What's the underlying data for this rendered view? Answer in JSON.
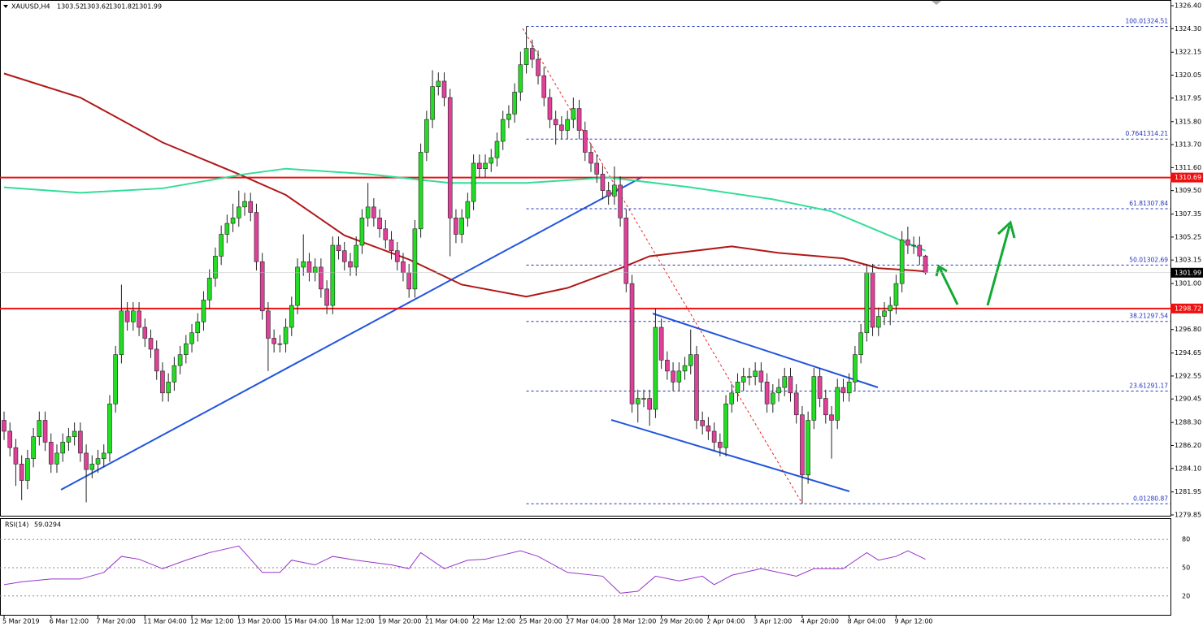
{
  "chart_data": {
    "type": "candlestick",
    "symbol": "XAUUSD,H4",
    "bull_color": "#22dd22",
    "bear_color": "#e0409a",
    "ylim": [
      1279.85,
      1326.4
    ],
    "yticks": [
      {
        "value": 1326.4,
        "label": "1326.40"
      },
      {
        "value": 1324.3,
        "label": "1324.30"
      },
      1322.15,
      {
        "value": 1320.05,
        "label": "1320.05"
      },
      1317.95,
      {
        "value": 1315.8,
        "label": "1315.80"
      },
      {
        "value": 1313.7,
        "label": "1313.70"
      },
      {
        "value": 1311.6,
        "label": "1311.60"
      },
      {
        "value": 1309.5,
        "label": "1309.50"
      },
      1307.35,
      1305.25,
      1303.15,
      {
        "value": 1301.0,
        "label": "1301.00"
      },
      {
        "value": 1298.9,
        "label": "1298.90"
      },
      {
        "value": 1296.8,
        "label": "1296.80"
      },
      1294.65,
      1292.55,
      1290.45,
      {
        "value": 1288.3,
        "label": "1288.30"
      },
      {
        "value": 1286.2,
        "label": "1286.20"
      },
      {
        "value": 1284.1,
        "label": "1284.10"
      },
      1281.95,
      {
        "value": 1279.85,
        "label": "1279.85"
      }
    ],
    "xlim": [
      0,
      158
    ],
    "xticks": [
      {
        "value": 0,
        "label": "5 Mar 2019"
      },
      {
        "value": 8,
        "label": "6 Mar 12:00"
      },
      {
        "value": 16,
        "label": "7 Mar 20:00"
      },
      {
        "value": 24,
        "label": "11 Mar 04:00"
      },
      {
        "value": 32,
        "label": "12 Mar 12:00"
      },
      {
        "value": 40,
        "label": "13 Mar 20:00"
      },
      {
        "value": 48,
        "label": "15 Mar 04:00"
      },
      {
        "value": 56,
        "label": "18 Mar 12:00"
      },
      {
        "value": 64,
        "label": "19 Mar 20:00"
      },
      {
        "value": 72,
        "label": "21 Mar 04:00"
      },
      {
        "value": 80,
        "label": "22 Mar 12:00"
      },
      {
        "value": 88,
        "label": "25 Mar 20:00"
      },
      {
        "value": 96,
        "label": "27 Mar 04:00"
      },
      {
        "value": 104,
        "label": "28 Mar 12:00"
      },
      {
        "value": 112,
        "label": "29 Mar 20:00"
      },
      {
        "value": 120,
        "label": "2 Apr 04:00"
      },
      {
        "value": 128,
        "label": "3 Apr 12:00"
      },
      {
        "value": 136,
        "label": "4 Apr 20:00"
      },
      {
        "value": 144,
        "label": "8 Apr 04:00"
      },
      {
        "value": 152,
        "label": "9 Apr 12:00"
      }
    ],
    "open": [
      1288.5,
      1287.5,
      1286,
      1284.5,
      1283,
      1285,
      1287,
      1288.5,
      1286.5,
      1284.5,
      1285.5,
      1286.5,
      1287,
      1287.5,
      1285.5,
      1284,
      1284.5,
      1285,
      1285.5,
      1290,
      1294.5,
      1298.5,
      1297.5,
      1298.5,
      1297,
      1296,
      1295,
      1293,
      1291,
      1292,
      1293.5,
      1294.5,
      1295.5,
      1296.5,
      1297.5,
      1299.5,
      1301.5,
      1303.5,
      1305.5,
      1306.5,
      1307,
      1308,
      1308.5,
      1307.5,
      1303,
      1298.5,
      1296,
      1295.5,
      1295.5,
      1297,
      1299,
      1302.5,
      1303,
      1302,
      1302.5,
      1300.5,
      1299,
      1304.5,
      1304,
      1303,
      1302.5,
      1304.5,
      1307,
      1308,
      1307,
      1306,
      1305,
      1304,
      1303,
      1302,
      1300.5,
      1306,
      1313,
      1316,
      1319,
      1319.5,
      1318,
      1307,
      1305.5,
      1307,
      1308.5,
      1312,
      1311.5,
      1312,
      1312.5,
      1314,
      1316,
      1316.5,
      1318.5,
      1321,
      1322.5,
      1321.5,
      1320,
      1318,
      1316,
      1315.5,
      1315,
      1316,
      1317,
      1315,
      1313,
      1312,
      1311,
      1309.5,
      1309,
      1310,
      1307,
      1301,
      1290,
      1290.5,
      1290.5,
      1289.5,
      1297,
      1294,
      1293,
      1292,
      1293,
      1293.5,
      1294.5,
      1288.5,
      1288,
      1287.5,
      1286.5,
      1286,
      1290,
      1291,
      1292,
      1292.5,
      1292.5,
      1293,
      1292,
      1290,
      1291,
      1291.5,
      1292.5,
      1291,
      1289,
      1283.5,
      1288.5,
      1292.5,
      1290.5,
      1289,
      1288.5,
      1291.5,
      1291,
      1292,
      1294.5,
      1296.5,
      1302,
      1297,
      1298,
      1298.5,
      1299,
      1301,
      1305,
      1304.5,
      1304.5,
      1303.52
    ],
    "high": [
      1289.3,
      1288.3,
      1286.8,
      1285.3,
      1285.8,
      1287.8,
      1289.3,
      1289.3,
      1287.3,
      1286.3,
      1287.3,
      1287.8,
      1288.3,
      1288.3,
      1286.3,
      1285.3,
      1285.8,
      1286.3,
      1290.8,
      1295.3,
      1300.9,
      1299.3,
      1299.3,
      1299.3,
      1297.8,
      1296.8,
      1295.8,
      1293.8,
      1292.8,
      1294.3,
      1295.3,
      1296.3,
      1297.3,
      1298.3,
      1300.3,
      1302.3,
      1304.3,
      1306.3,
      1307.3,
      1308.3,
      1309.5,
      1309.3,
      1309.3,
      1308.3,
      1303.8,
      1299.3,
      1296.8,
      1296.3,
      1297.8,
      1299.8,
      1303.3,
      1305.5,
      1303.8,
      1303.3,
      1303.3,
      1301.3,
      1305.3,
      1305.3,
      1304.8,
      1303.8,
      1305.3,
      1307.8,
      1310.2,
      1308.8,
      1307.8,
      1306.8,
      1305.8,
      1304.8,
      1303.8,
      1302.8,
      1306.8,
      1313.8,
      1316.8,
      1320.5,
      1320.3,
      1320.3,
      1318.8,
      1307.8,
      1307.8,
      1309.3,
      1312.8,
      1312.8,
      1312.8,
      1313.3,
      1314.8,
      1316.8,
      1317.3,
      1319.3,
      1322.2,
      1324.51,
      1323.3,
      1322.3,
      1320.8,
      1318.8,
      1316.8,
      1316.3,
      1316.8,
      1318.0,
      1317.8,
      1315.8,
      1313.8,
      1312.8,
      1311.8,
      1310.3,
      1311.7,
      1310.8,
      1307.8,
      1301.8,
      1291.3,
      1291.3,
      1291.3,
      1298.7,
      1297.8,
      1294.8,
      1293.8,
      1293.8,
      1294.3,
      1296.8,
      1295.3,
      1289.3,
      1288.8,
      1288.3,
      1287.3,
      1290.8,
      1291.8,
      1292.8,
      1293.3,
      1293.3,
      1293.8,
      1293.8,
      1292.8,
      1291.8,
      1292.3,
      1293.3,
      1293.3,
      1291.8,
      1289.8,
      1289.3,
      1293.3,
      1293.3,
      1291.3,
      1289.8,
      1292.3,
      1292.3,
      1292.8,
      1295.3,
      1297.3,
      1302.8,
      1302.8,
      1298.8,
      1299.3,
      1299.8,
      1301.8,
      1305.8,
      1306.2,
      1305.3,
      1305.3,
      1303.62
    ],
    "low": [
      1286.7,
      1285.2,
      1282.5,
      1281.2,
      1282.2,
      1284.2,
      1286.2,
      1285.7,
      1283.7,
      1283.7,
      1284.7,
      1285.7,
      1286.2,
      1284.7,
      1281.0,
      1283.2,
      1283.7,
      1284.2,
      1284.7,
      1289.2,
      1293.7,
      1296.7,
      1296.7,
      1296.2,
      1295.2,
      1294.2,
      1292.2,
      1290.2,
      1290.2,
      1291.2,
      1292.7,
      1293.7,
      1294.7,
      1295.7,
      1296.7,
      1298.7,
      1300.7,
      1302.7,
      1304.7,
      1305.7,
      1306.2,
      1307.2,
      1306.7,
      1302.2,
      1297.7,
      1293.0,
      1294.7,
      1294.7,
      1294.7,
      1296.2,
      1298.2,
      1301.7,
      1301.2,
      1301.2,
      1299.7,
      1298.2,
      1298.2,
      1303.2,
      1302.2,
      1301.7,
      1301.7,
      1303.7,
      1306.2,
      1306.2,
      1305.2,
      1304.2,
      1303.2,
      1302.2,
      1301.2,
      1299.7,
      1299.7,
      1305.2,
      1312.2,
      1315.2,
      1318.2,
      1317.2,
      1303.5,
      1304.7,
      1304.7,
      1306.2,
      1307.7,
      1310.7,
      1310.7,
      1311.2,
      1311.7,
      1313.2,
      1315.2,
      1315.7,
      1317.7,
      1320.2,
      1320.7,
      1319.2,
      1317.2,
      1315.2,
      1313.7,
      1314.2,
      1314.2,
      1315.2,
      1314.2,
      1312.2,
      1311.2,
      1310.2,
      1308.7,
      1308.2,
      1308.2,
      1306.2,
      1300.2,
      1289.2,
      1288.3,
      1289.7,
      1288.0,
      1288.7,
      1293.2,
      1292.2,
      1291.2,
      1291.2,
      1292.2,
      1292.7,
      1287.7,
      1287.2,
      1286.7,
      1285.7,
      1285.2,
      1285.2,
      1289.2,
      1290.2,
      1291.2,
      1291.7,
      1291.7,
      1291.2,
      1289.2,
      1289.2,
      1290.2,
      1290.7,
      1290.2,
      1288.2,
      1280.87,
      1282.7,
      1287.7,
      1289.7,
      1288.2,
      1285.0,
      1287.7,
      1290.2,
      1290.2,
      1291.2,
      1293.7,
      1295.7,
      1296.2,
      1296.2,
      1297.2,
      1297.2,
      1298.2,
      1300.2,
      1303.7,
      1303.7,
      1302.7,
      1301.82
    ],
    "close": [
      1287.5,
      1286,
      1284.5,
      1283,
      1285,
      1287,
      1288.5,
      1286.5,
      1284.5,
      1285.5,
      1286.5,
      1287,
      1287.5,
      1285.5,
      1284,
      1284.5,
      1285,
      1285.5,
      1290,
      1294.5,
      1298.5,
      1297.5,
      1298.5,
      1297,
      1296,
      1295,
      1293,
      1291,
      1292,
      1293.5,
      1294.5,
      1295.5,
      1296.5,
      1297.5,
      1299.5,
      1301.5,
      1303.5,
      1305.5,
      1306.5,
      1307,
      1308,
      1308.5,
      1307.5,
      1303,
      1298.5,
      1296,
      1295.5,
      1295.5,
      1297,
      1299,
      1302.5,
      1303,
      1302,
      1302.5,
      1300.5,
      1299,
      1304.5,
      1304,
      1303,
      1302.5,
      1304.5,
      1307,
      1308,
      1307,
      1306,
      1305,
      1304,
      1303,
      1302,
      1300.5,
      1306,
      1313,
      1316,
      1319,
      1319.5,
      1318,
      1307,
      1305.5,
      1307,
      1308.5,
      1312,
      1311.5,
      1312,
      1312.5,
      1314,
      1316,
      1316.5,
      1318.5,
      1321,
      1322.5,
      1321.5,
      1320,
      1318,
      1316,
      1315.5,
      1315,
      1316,
      1317,
      1315,
      1313,
      1312,
      1311,
      1309.5,
      1309,
      1310,
      1307,
      1301,
      1290,
      1290.5,
      1290.5,
      1289.5,
      1297,
      1294,
      1293,
      1292,
      1293,
      1293.5,
      1294.5,
      1288.5,
      1288,
      1287.5,
      1286.5,
      1286,
      1290,
      1291,
      1292,
      1292.5,
      1292.5,
      1293,
      1292,
      1290,
      1291,
      1291.5,
      1292.5,
      1291,
      1289,
      1283.5,
      1288.5,
      1292.5,
      1290.5,
      1289,
      1288.5,
      1291.5,
      1291,
      1292,
      1294.5,
      1296.5,
      1302,
      1297,
      1298,
      1298.5,
      1299,
      1301,
      1305,
      1304.5,
      1304.5,
      1303.52,
      1301.99
    ],
    "moving_averages": [
      {
        "color": "#b01818",
        "x": [
          0,
          13,
          27,
          40,
          48,
          58,
          69,
          78,
          89,
          96,
          105,
          110,
          124,
          132,
          143,
          149,
          155,
          157
        ],
        "values": [
          1320.2,
          1318,
          1313.9,
          1311,
          1309.1,
          1305.4,
          1303.2,
          1300.9,
          1299.8,
          1300.6,
          1302.4,
          1303.5,
          1304.4,
          1303.8,
          1303.3,
          1302.4,
          1302.2,
          1302.1
        ]
      },
      {
        "color": "#33dd99",
        "x": [
          0,
          13,
          27,
          41,
          48,
          62,
          76,
          89,
          103,
          117,
          131,
          141,
          149,
          157
        ],
        "values": [
          1309.8,
          1309.3,
          1309.7,
          1311,
          1311.5,
          1311,
          1310.2,
          1310.2,
          1310.7,
          1309.8,
          1308.7,
          1307.6,
          1305.8,
          1304
        ]
      }
    ],
    "levels": [
      {
        "price": 1310.69,
        "color": "#ee1111"
      },
      {
        "price": 1298.72,
        "color": "#ee1111"
      }
    ],
    "fibonacci": [
      {
        "level": "100.0",
        "price": 1324.51
      },
      {
        "level": "0.764",
        "price": 1314.21
      },
      {
        "level": "61.8",
        "price": 1307.84
      },
      {
        "level": "50.0",
        "price": 1302.69
      },
      {
        "level": "38.2",
        "price": 1297.54
      },
      {
        "level": "23.6",
        "price": 1291.17
      },
      {
        "level": "0.0",
        "price": 1280.87
      }
    ],
    "fib_start": 89,
    "rsi": {
      "title": "RSI(14)",
      "color": "#9933cc",
      "ylim": [
        0,
        100
      ],
      "yticks": [
        80,
        50,
        20
      ],
      "x": [
        0,
        3,
        8,
        13,
        17,
        20,
        23,
        27,
        31,
        35,
        40,
        44,
        47,
        49,
        53,
        56,
        60,
        66,
        69,
        71,
        75,
        79,
        82,
        88,
        91,
        96,
        102,
        105,
        108,
        111,
        115,
        119,
        121,
        124,
        129,
        135,
        138,
        143,
        147,
        149,
        152,
        154,
        157
      ],
      "values": [
        32,
        35,
        38,
        38,
        45,
        62,
        59,
        49,
        58,
        66,
        73,
        45,
        45,
        58,
        53,
        62,
        58,
        53,
        49,
        66,
        49,
        58,
        59,
        68,
        62,
        45,
        41,
        23,
        25,
        41,
        36,
        41,
        32,
        42,
        49,
        41,
        49,
        49,
        66,
        58,
        62,
        68,
        59.0294
      ]
    }
  }
}
